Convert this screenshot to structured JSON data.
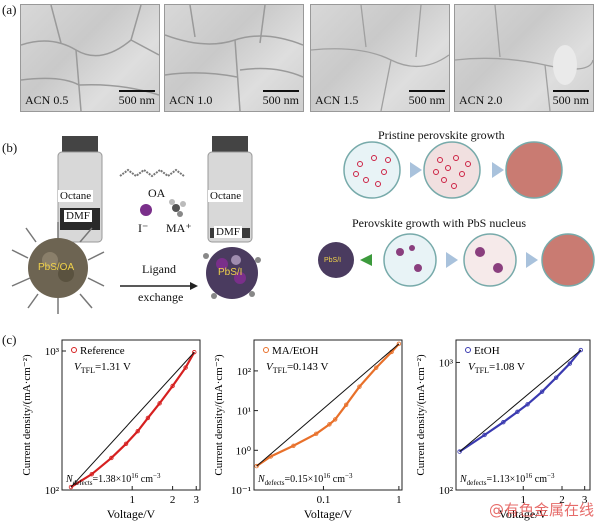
{
  "panels": {
    "a": "(a)",
    "b": "(b)",
    "c": "(c)"
  },
  "sem": [
    {
      "label": "ACN 0.5",
      "scale": "500 nm"
    },
    {
      "label": "ACN 1.0",
      "scale": "500 nm"
    },
    {
      "label": "ACN 1.5",
      "scale": "500 nm"
    },
    {
      "label": "ACN 2.0",
      "scale": "500 nm"
    }
  ],
  "schematic": {
    "vial_top": "Octane",
    "vial_bottom": "DMF",
    "oa": "OA",
    "iodide": "I⁻",
    "ma": "MA⁺",
    "np_left": "PbS/OA",
    "np_right": "PbS/I",
    "np_small": "PbS/I",
    "ligand_exchange_1": "Ligand",
    "ligand_exchange_2": "exchange",
    "pristine_title": "Pristine perovskite growth",
    "pbs_title": "Perovskite growth with PbS nucleus"
  },
  "chart_data": [
    {
      "type": "line",
      "scale": "log-log",
      "legend": "Reference",
      "vtfl": "V",
      "vtfl_sub": "TFL",
      "vtfl_value": "=1.31 V",
      "ndef": "N",
      "ndef_sub": "defects",
      "ndef_value": "=1.38×10",
      "ndef_exp": "16",
      "ndef_unit": " cm",
      "ndef_unit_exp": "−3",
      "xlabel": "Voltage/V",
      "ylabel": "Current density/(mA·cm⁻²)",
      "xlim": [
        0.3,
        3.2
      ],
      "ylim": [
        100,
        1200
      ],
      "xticks": [
        "1",
        "2",
        "3"
      ],
      "yticks": [
        "10²",
        "10³"
      ],
      "x": [
        0.35,
        0.5,
        0.7,
        0.9,
        1.1,
        1.31,
        1.6,
        2.0,
        2.5,
        2.9
      ],
      "y": [
        105,
        130,
        170,
        215,
        265,
        330,
        420,
        560,
        760,
        980
      ],
      "color": "#d62020"
    },
    {
      "type": "line",
      "scale": "log-log",
      "legend": "MA/EtOH",
      "vtfl": "V",
      "vtfl_sub": "TFL",
      "vtfl_value": "=0.143 V",
      "ndef": "N",
      "ndef_sub": "defects",
      "ndef_value": "=0.15×10",
      "ndef_exp": "16",
      "ndef_unit": " cm",
      "ndef_unit_exp": "−3",
      "xlabel": "Voltage/V",
      "ylabel": "Current density/(mA·cm⁻²)",
      "xlim": [
        0.012,
        1.1
      ],
      "ylim": [
        0.1,
        600
      ],
      "xticks": [
        "0.1",
        "1"
      ],
      "yticks": [
        "10⁻¹",
        "10⁰",
        "10¹",
        "10²"
      ],
      "x": [
        0.013,
        0.02,
        0.04,
        0.08,
        0.12,
        0.143,
        0.2,
        0.3,
        0.5,
        0.8,
        1.0
      ],
      "y": [
        0.4,
        0.7,
        1.3,
        2.6,
        4.5,
        6.0,
        14,
        40,
        120,
        300,
        480
      ],
      "color": "#e8702a"
    },
    {
      "type": "line",
      "scale": "log-log",
      "legend": "EtOH",
      "vtfl": "V",
      "vtfl_sub": "TFL",
      "vtfl_value": "=1.08 V",
      "ndef": "N",
      "ndef_sub": "defects",
      "ndef_value": "=1.13×10",
      "ndef_exp": "16",
      "ndef_unit": " cm",
      "ndef_unit_exp": "−3",
      "xlabel": "Voltage/V",
      "ylabel": "Current density/(mA·cm⁻²)",
      "xlim": [
        0.3,
        3.3
      ],
      "ylim": [
        100,
        1500
      ],
      "xticks": [
        "1",
        "2",
        "3"
      ],
      "yticks": [
        "10²",
        "10³"
      ],
      "x": [
        0.32,
        0.5,
        0.7,
        0.9,
        1.08,
        1.4,
        1.8,
        2.3,
        2.8
      ],
      "y": [
        200,
        270,
        340,
        410,
        470,
        590,
        760,
        980,
        1250
      ],
      "color": "#3a3ab0"
    }
  ],
  "watermark": "@有色金属在线"
}
